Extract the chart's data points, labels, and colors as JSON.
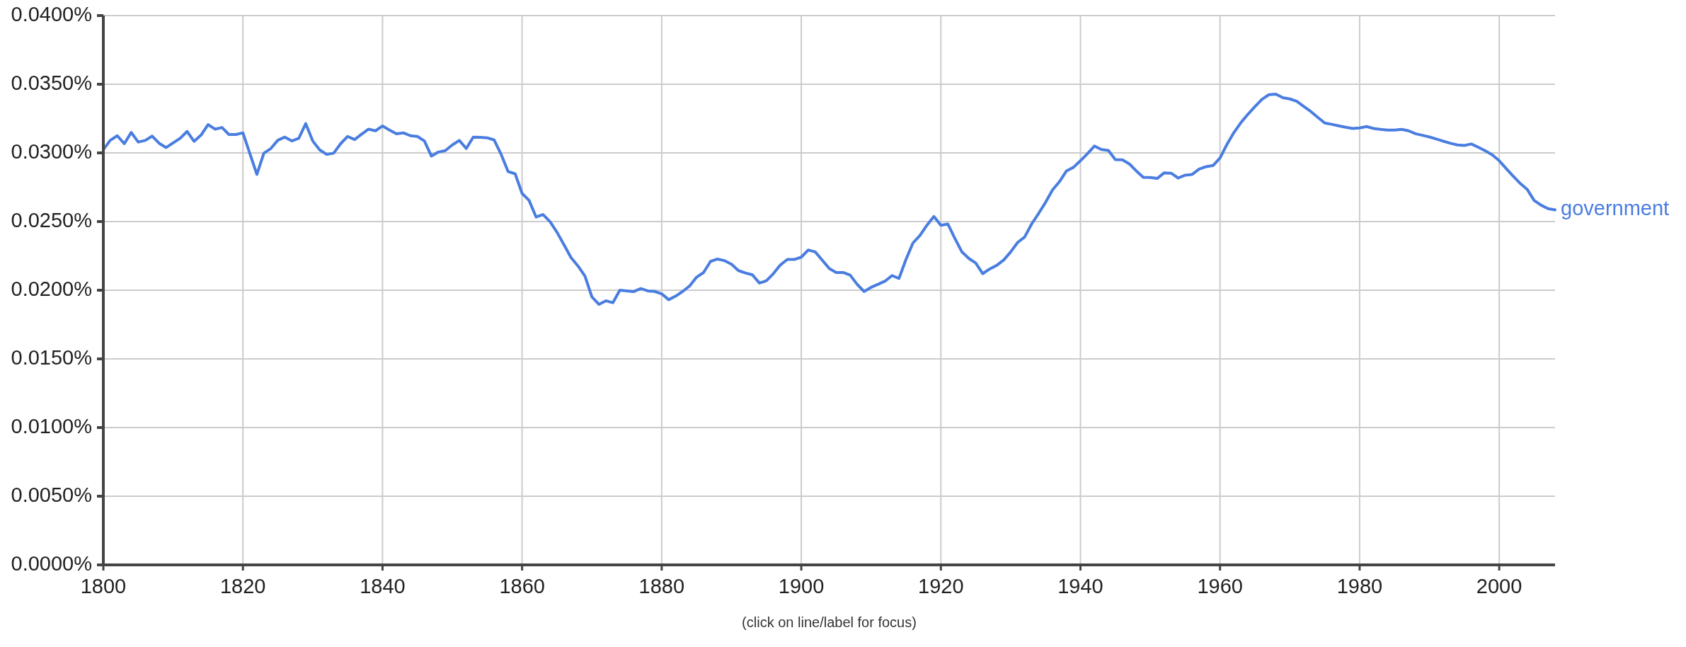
{
  "chart_data": {
    "type": "line",
    "annotations": [
      "(click on line/label for focus)"
    ],
    "xlim": [
      1800,
      2008
    ],
    "ylim": [
      0,
      0.04
    ],
    "xticks": [
      1800,
      1820,
      1840,
      1860,
      1880,
      1900,
      1920,
      1940,
      1960,
      1980,
      2000
    ],
    "yticks": [
      {
        "value": 0,
        "label": "0.0000%"
      },
      {
        "value": 0.005,
        "label": "0.0050%"
      },
      {
        "value": 0.01,
        "label": "0.0100%"
      },
      {
        "value": 0.015,
        "label": "0.0150%"
      },
      {
        "value": 0.02,
        "label": "0.0200%"
      },
      {
        "value": 0.025,
        "label": "0.0250%"
      },
      {
        "value": 0.03,
        "label": "0.0300%"
      },
      {
        "value": 0.035,
        "label": "0.0350%"
      },
      {
        "value": 0.04,
        "label": "0.0400%"
      }
    ],
    "grid": true,
    "x": [
      1800,
      1801,
      1802,
      1803,
      1804,
      1805,
      1806,
      1807,
      1808,
      1809,
      1810,
      1811,
      1812,
      1813,
      1814,
      1815,
      1816,
      1817,
      1818,
      1819,
      1820,
      1821,
      1822,
      1823,
      1824,
      1825,
      1826,
      1827,
      1828,
      1829,
      1830,
      1831,
      1832,
      1833,
      1834,
      1835,
      1836,
      1837,
      1838,
      1839,
      1840,
      1841,
      1842,
      1843,
      1844,
      1845,
      1846,
      1847,
      1848,
      1849,
      1850,
      1851,
      1852,
      1853,
      1854,
      1855,
      1856,
      1857,
      1858,
      1859,
      1860,
      1861,
      1862,
      1863,
      1864,
      1865,
      1866,
      1867,
      1868,
      1869,
      1870,
      1871,
      1872,
      1873,
      1874,
      1875,
      1876,
      1877,
      1878,
      1879,
      1880,
      1881,
      1882,
      1883,
      1884,
      1885,
      1886,
      1887,
      1888,
      1889,
      1890,
      1891,
      1892,
      1893,
      1894,
      1895,
      1896,
      1897,
      1898,
      1899,
      1900,
      1901,
      1902,
      1903,
      1904,
      1905,
      1906,
      1907,
      1908,
      1909,
      1910,
      1911,
      1912,
      1913,
      1914,
      1915,
      1916,
      1917,
      1918,
      1919,
      1920,
      1921,
      1922,
      1923,
      1924,
      1925,
      1926,
      1927,
      1928,
      1929,
      1930,
      1931,
      1932,
      1933,
      1934,
      1935,
      1936,
      1937,
      1938,
      1939,
      1940,
      1941,
      1942,
      1943,
      1944,
      1945,
      1946,
      1947,
      1948,
      1949,
      1950,
      1951,
      1952,
      1953,
      1954,
      1955,
      1956,
      1957,
      1958,
      1959,
      1960,
      1961,
      1962,
      1963,
      1964,
      1965,
      1966,
      1967,
      1968,
      1969,
      1970,
      1971,
      1972,
      1973,
      1974,
      1975,
      1976,
      1977,
      1978,
      1979,
      1980,
      1981,
      1982,
      1983,
      1984,
      1985,
      1986,
      1987,
      1988,
      1989,
      1990,
      1991,
      1992,
      1993,
      1994,
      1995,
      1996,
      1997,
      1998,
      1999,
      2000,
      2001,
      2002,
      2003,
      2004,
      2005,
      2006,
      2007,
      2008
    ],
    "series": [
      {
        "name": "government",
        "color": "#4a7de0",
        "values": [
          0.03024,
          0.03092,
          0.03125,
          0.03067,
          0.03149,
          0.03079,
          0.03091,
          0.03122,
          0.0307,
          0.03039,
          0.03073,
          0.03106,
          0.03156,
          0.03084,
          0.0313,
          0.03206,
          0.03173,
          0.03185,
          0.03134,
          0.03134,
          0.03146,
          0.02994,
          0.02843,
          0.02998,
          0.03032,
          0.03092,
          0.03115,
          0.03087,
          0.03106,
          0.03213,
          0.03087,
          0.03022,
          0.02989,
          0.02998,
          0.03067,
          0.0312,
          0.03097,
          0.03136,
          0.03173,
          0.03161,
          0.03196,
          0.03166,
          0.03139,
          0.03146,
          0.03125,
          0.0312,
          0.03087,
          0.02977,
          0.03006,
          0.03017,
          0.03058,
          0.03091,
          0.03032,
          0.03115,
          0.03113,
          0.0311,
          0.03094,
          0.02989,
          0.02864,
          0.02848,
          0.02705,
          0.02654,
          0.02533,
          0.02551,
          0.02499,
          0.02422,
          0.02331,
          0.02238,
          0.02177,
          0.02104,
          0.01952,
          0.01897,
          0.01923,
          0.01909,
          0.02,
          0.01995,
          0.0199,
          0.02012,
          0.01995,
          0.01991,
          0.01974,
          0.01931,
          0.01957,
          0.01991,
          0.02031,
          0.02095,
          0.02129,
          0.0221,
          0.02227,
          0.02215,
          0.02189,
          0.02143,
          0.02126,
          0.02112,
          0.02052,
          0.02069,
          0.02121,
          0.02184,
          0.02224,
          0.02224,
          0.02241,
          0.02293,
          0.02279,
          0.02219,
          0.02159,
          0.02129,
          0.02129,
          0.0211,
          0.02043,
          0.01991,
          0.02021,
          0.02043,
          0.02066,
          0.02107,
          0.02086,
          0.02224,
          0.02344,
          0.02399,
          0.02473,
          0.02537,
          0.02473,
          0.02482,
          0.02378,
          0.0228,
          0.02232,
          0.02198,
          0.02121,
          0.02155,
          0.02181,
          0.0222,
          0.02279,
          0.02348,
          0.02387,
          0.02482,
          0.02559,
          0.0264,
          0.02731,
          0.02791,
          0.02869,
          0.02895,
          0.02943,
          0.02994,
          0.0305,
          0.03024,
          0.03018,
          0.02951,
          0.0295,
          0.0292,
          0.02869,
          0.02822,
          0.02821,
          0.02814,
          0.02855,
          0.02852,
          0.02817,
          0.02838,
          0.02843,
          0.02882,
          0.029,
          0.02908,
          0.02963,
          0.03063,
          0.03149,
          0.03221,
          0.03282,
          0.03337,
          0.0339,
          0.03424,
          0.03428,
          0.03402,
          0.03393,
          0.03376,
          0.03338,
          0.03302,
          0.03259,
          0.03218,
          0.03208,
          0.03197,
          0.03187,
          0.03178,
          0.03182,
          0.03192,
          0.03178,
          0.03171,
          0.03166,
          0.03166,
          0.03171,
          0.03161,
          0.0314,
          0.03128,
          0.03116,
          0.03101,
          0.03085,
          0.0307,
          0.03058,
          0.03054,
          0.03065,
          0.03041,
          0.03015,
          0.02986,
          0.02943,
          0.02886,
          0.02831,
          0.02778,
          0.02735,
          0.02654,
          0.02619,
          0.02594,
          0.02585
        ]
      }
    ]
  }
}
